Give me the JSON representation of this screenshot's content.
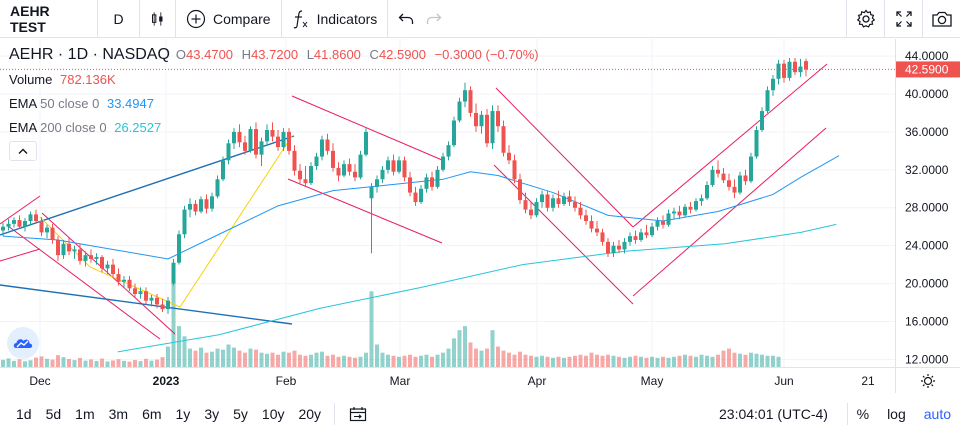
{
  "toolbar": {
    "symbol": "AEHR TEST",
    "interval": "D",
    "compare_label": "Compare",
    "indicators_label": "Indicators"
  },
  "legend": {
    "title": "AEHR · 1D · NASDAQ",
    "open_label": "O",
    "open": "43.4700",
    "high_label": "H",
    "high": "43.7200",
    "low_label": "L",
    "low": "41.8600",
    "close_label": "C",
    "close": "42.5900",
    "change": "−0.3000 (−0.70%)",
    "volume_label": "Volume",
    "volume": "782.136K",
    "ema50_label": "EMA",
    "ema50_params": "50 close 0",
    "ema50_value": "33.4947",
    "ema200_label": "EMA",
    "ema200_params": "200 close 0",
    "ema200_value": "26.2527"
  },
  "price_axis": {
    "ticks": [
      "44.0000",
      "40.0000",
      "36.0000",
      "32.0000",
      "28.0000",
      "24.0000",
      "20.0000",
      "16.0000",
      "12.0000"
    ],
    "tick_values": [
      44,
      40,
      36,
      32,
      28,
      24,
      20,
      16,
      12
    ],
    "current_price": "42.5900",
    "current_price_value": 42.59
  },
  "time_axis": {
    "labels": [
      "Dec",
      "2023",
      "Feb",
      "Mar",
      "Apr",
      "May",
      "Jun",
      "21"
    ]
  },
  "bottombar": {
    "ranges": [
      "1d",
      "5d",
      "1m",
      "3m",
      "6m",
      "1y",
      "3y",
      "5y",
      "10y",
      "20y"
    ],
    "clock": "23:04:01 (UTC-4)",
    "percent": "%",
    "log": "log",
    "auto": "auto"
  },
  "colors": {
    "up": "#26a69a",
    "down": "#ef5350",
    "ema50": "#2196f3",
    "ema200": "#26c6da",
    "channel": "#e91e63",
    "trend": "#1e6fb5",
    "fib": "#f5d300"
  },
  "chart_data": {
    "type": "candlestick",
    "symbol": "AEHR",
    "interval": "1D",
    "ylim": [
      11.2,
      45.8
    ],
    "last_close": 42.59,
    "candles": [
      [
        25.6,
        26.4,
        25.0,
        26.0
      ],
      [
        26.0,
        26.8,
        25.6,
        26.3
      ],
      [
        26.3,
        27.0,
        25.9,
        26.7
      ],
      [
        26.7,
        27.2,
        25.8,
        26.0
      ],
      [
        26.0,
        26.9,
        25.5,
        26.6
      ],
      [
        26.6,
        27.6,
        26.2,
        27.3
      ],
      [
        27.3,
        27.8,
        26.3,
        26.6
      ],
      [
        26.6,
        27.0,
        25.0,
        25.4
      ],
      [
        25.4,
        26.2,
        24.8,
        25.9
      ],
      [
        25.9,
        26.3,
        24.2,
        24.6
      ],
      [
        24.6,
        25.0,
        22.4,
        23.0
      ],
      [
        23.0,
        24.6,
        22.6,
        24.2
      ],
      [
        24.2,
        24.8,
        23.0,
        23.4
      ],
      [
        23.4,
        24.0,
        22.6,
        23.6
      ],
      [
        23.6,
        24.2,
        22.0,
        22.4
      ],
      [
        22.4,
        23.4,
        21.8,
        23.0
      ],
      [
        23.0,
        23.6,
        22.2,
        22.6
      ],
      [
        22.6,
        23.2,
        22.0,
        22.8
      ],
      [
        22.8,
        23.0,
        21.2,
        21.6
      ],
      [
        21.6,
        22.4,
        21.0,
        22.0
      ],
      [
        22.0,
        22.6,
        20.6,
        21.0
      ],
      [
        21.0,
        21.6,
        19.8,
        20.2
      ],
      [
        20.2,
        20.8,
        19.6,
        20.4
      ],
      [
        20.4,
        20.8,
        19.2,
        19.5
      ],
      [
        19.5,
        20.0,
        18.6,
        18.9
      ],
      [
        18.9,
        19.6,
        18.4,
        19.2
      ],
      [
        19.2,
        19.6,
        17.8,
        18.2
      ],
      [
        18.2,
        18.8,
        17.6,
        18.5
      ],
      [
        18.5,
        18.9,
        17.4,
        17.8
      ],
      [
        17.8,
        18.4,
        17.0,
        17.3
      ],
      [
        17.3,
        18.6,
        16.8,
        18.2
      ],
      [
        20.0,
        22.6,
        19.8,
        22.2
      ],
      [
        22.2,
        25.6,
        22.0,
        25.2
      ],
      [
        25.2,
        28.2,
        24.8,
        27.8
      ],
      [
        27.8,
        29.0,
        27.0,
        28.4
      ],
      [
        28.4,
        28.8,
        27.2,
        27.6
      ],
      [
        27.6,
        29.2,
        27.4,
        28.9
      ],
      [
        28.9,
        29.4,
        27.4,
        27.9
      ],
      [
        27.9,
        29.6,
        27.6,
        29.2
      ],
      [
        29.2,
        31.4,
        29.0,
        31.0
      ],
      [
        31.0,
        33.4,
        30.8,
        33.0
      ],
      [
        33.0,
        35.2,
        32.6,
        34.8
      ],
      [
        34.8,
        36.4,
        34.2,
        36.0
      ],
      [
        36.0,
        36.8,
        34.4,
        34.9
      ],
      [
        34.9,
        35.6,
        33.6,
        34.0
      ],
      [
        34.0,
        36.6,
        33.8,
        36.3
      ],
      [
        36.3,
        37.0,
        33.2,
        33.6
      ],
      [
        33.6,
        35.4,
        32.4,
        35.0
      ],
      [
        35.0,
        36.8,
        34.6,
        36.2
      ],
      [
        36.2,
        37.0,
        35.0,
        35.5
      ],
      [
        35.5,
        36.2,
        34.0,
        34.4
      ],
      [
        34.4,
        36.4,
        34.0,
        36.0
      ],
      [
        36.0,
        36.4,
        33.6,
        34.0
      ],
      [
        34.0,
        34.6,
        31.4,
        31.9
      ],
      [
        31.9,
        32.6,
        30.6,
        31.0
      ],
      [
        31.0,
        32.4,
        30.2,
        30.6
      ],
      [
        30.6,
        32.8,
        30.4,
        32.4
      ],
      [
        32.4,
        33.8,
        32.0,
        33.4
      ],
      [
        33.4,
        35.6,
        33.0,
        35.2
      ],
      [
        35.2,
        35.8,
        33.6,
        34.0
      ],
      [
        34.0,
        34.8,
        31.8,
        32.2
      ],
      [
        32.2,
        32.8,
        30.8,
        31.4
      ],
      [
        31.4,
        33.0,
        31.2,
        32.6
      ],
      [
        32.6,
        33.2,
        31.4,
        31.8
      ],
      [
        31.8,
        32.6,
        30.8,
        31.2
      ],
      [
        31.2,
        34.0,
        31.0,
        33.6
      ],
      [
        33.6,
        36.4,
        33.4,
        36.0
      ],
      [
        29.0,
        30.6,
        23.2,
        30.2
      ],
      [
        30.2,
        31.4,
        29.6,
        31.0
      ],
      [
        31.0,
        32.4,
        30.6,
        32.0
      ],
      [
        32.0,
        33.4,
        31.6,
        33.0
      ],
      [
        33.0,
        33.6,
        31.4,
        31.8
      ],
      [
        31.8,
        33.4,
        31.6,
        33.0
      ],
      [
        33.0,
        33.4,
        30.8,
        31.2
      ],
      [
        31.2,
        31.8,
        29.2,
        29.6
      ],
      [
        29.6,
        30.2,
        28.2,
        28.6
      ],
      [
        28.6,
        30.4,
        28.4,
        30.0
      ],
      [
        30.0,
        31.6,
        29.6,
        31.2
      ],
      [
        31.2,
        31.8,
        29.8,
        30.2
      ],
      [
        30.2,
        32.4,
        30.0,
        32.0
      ],
      [
        32.0,
        33.8,
        31.8,
        33.4
      ],
      [
        33.4,
        35.0,
        33.0,
        34.6
      ],
      [
        34.6,
        37.6,
        34.4,
        37.2
      ],
      [
        37.2,
        39.6,
        37.0,
        39.2
      ],
      [
        39.2,
        41.2,
        38.6,
        40.4
      ],
      [
        40.4,
        40.8,
        37.6,
        38.0
      ],
      [
        38.0,
        39.0,
        36.0,
        36.6
      ],
      [
        36.6,
        38.2,
        35.8,
        37.8
      ],
      [
        37.8,
        38.4,
        34.4,
        34.8
      ],
      [
        34.8,
        38.8,
        34.2,
        38.2
      ],
      [
        38.2,
        38.8,
        36.0,
        36.6
      ],
      [
        36.6,
        37.2,
        33.4,
        33.8
      ],
      [
        33.8,
        34.6,
        32.6,
        33.0
      ],
      [
        33.0,
        33.6,
        30.6,
        31.0
      ],
      [
        31.0,
        31.6,
        28.4,
        28.8
      ],
      [
        28.8,
        29.6,
        27.4,
        27.8
      ],
      [
        27.8,
        28.6,
        26.8,
        27.2
      ],
      [
        27.2,
        29.0,
        27.0,
        28.6
      ],
      [
        28.6,
        29.8,
        28.0,
        29.4
      ],
      [
        29.4,
        29.8,
        27.6,
        28.0
      ],
      [
        28.0,
        29.4,
        27.6,
        29.0
      ],
      [
        29.0,
        29.8,
        28.0,
        28.4
      ],
      [
        28.4,
        29.6,
        28.2,
        29.2
      ],
      [
        29.2,
        29.8,
        28.2,
        28.6
      ],
      [
        28.6,
        29.2,
        27.6,
        28.0
      ],
      [
        28.0,
        28.6,
        26.8,
        27.2
      ],
      [
        27.2,
        27.8,
        26.2,
        26.6
      ],
      [
        26.6,
        27.2,
        25.4,
        25.8
      ],
      [
        25.8,
        26.6,
        25.0,
        25.4
      ],
      [
        25.4,
        25.8,
        24.0,
        24.4
      ],
      [
        24.4,
        24.8,
        22.8,
        23.2
      ],
      [
        23.2,
        24.4,
        22.8,
        24.0
      ],
      [
        24.0,
        24.6,
        23.2,
        23.6
      ],
      [
        23.6,
        24.8,
        23.2,
        24.4
      ],
      [
        24.4,
        25.4,
        24.0,
        25.0
      ],
      [
        25.0,
        25.6,
        24.2,
        24.6
      ],
      [
        24.6,
        25.8,
        24.4,
        25.4
      ],
      [
        25.4,
        26.2,
        24.8,
        25.1
      ],
      [
        25.1,
        26.4,
        24.9,
        26.0
      ],
      [
        26.0,
        27.0,
        25.6,
        26.6
      ],
      [
        26.6,
        27.2,
        25.8,
        26.2
      ],
      [
        26.2,
        27.8,
        26.0,
        27.4
      ],
      [
        27.4,
        28.0,
        26.8,
        27.6
      ],
      [
        27.6,
        28.2,
        26.8,
        27.2
      ],
      [
        27.2,
        28.4,
        27.0,
        28.1
      ],
      [
        28.1,
        28.6,
        27.4,
        27.8
      ],
      [
        27.8,
        29.0,
        27.6,
        28.7
      ],
      [
        28.7,
        29.4,
        28.2,
        29.0
      ],
      [
        29.0,
        30.8,
        28.8,
        30.4
      ],
      [
        30.4,
        32.4,
        30.2,
        32.0
      ],
      [
        32.0,
        33.0,
        31.2,
        31.6
      ],
      [
        31.6,
        32.2,
        30.6,
        30.9
      ],
      [
        30.9,
        31.6,
        29.8,
        30.2
      ],
      [
        30.2,
        31.0,
        29.0,
        29.6
      ],
      [
        29.6,
        31.8,
        29.4,
        31.4
      ],
      [
        31.4,
        32.0,
        30.4,
        30.8
      ],
      [
        30.8,
        33.8,
        30.6,
        33.4
      ],
      [
        33.4,
        36.6,
        33.2,
        36.2
      ],
      [
        36.2,
        38.6,
        36.0,
        38.2
      ],
      [
        38.2,
        40.8,
        38.0,
        40.4
      ],
      [
        40.4,
        42.0,
        39.8,
        41.6
      ],
      [
        41.6,
        43.6,
        41.0,
        43.2
      ],
      [
        43.2,
        43.6,
        41.2,
        41.7
      ],
      [
        41.7,
        43.8,
        41.4,
        43.4
      ],
      [
        43.4,
        43.8,
        42.0,
        42.3
      ],
      [
        42.3,
        43.7,
        41.8,
        42.9
      ],
      [
        43.47,
        43.72,
        41.86,
        42.59
      ]
    ],
    "volume": [
      0.35,
      0.42,
      0.3,
      0.38,
      0.28,
      0.33,
      0.46,
      0.52,
      0.4,
      0.36,
      0.58,
      0.48,
      0.39,
      0.34,
      0.44,
      0.31,
      0.37,
      0.29,
      0.41,
      0.27,
      0.32,
      0.38,
      0.3,
      0.26,
      0.34,
      0.29,
      0.4,
      0.31,
      0.36,
      0.48,
      1.0,
      4.4,
      2.0,
      1.5,
      0.9,
      0.8,
      0.95,
      0.7,
      0.75,
      0.9,
      0.85,
      1.1,
      0.95,
      0.8,
      0.7,
      0.9,
      0.85,
      0.7,
      0.65,
      0.7,
      0.6,
      0.75,
      0.7,
      0.8,
      0.6,
      0.55,
      0.6,
      0.7,
      0.75,
      0.55,
      0.6,
      0.5,
      0.55,
      0.5,
      0.45,
      0.5,
      0.7,
      3.7,
      1.1,
      0.7,
      0.6,
      0.55,
      0.5,
      0.55,
      0.6,
      0.5,
      0.55,
      0.6,
      0.5,
      0.6,
      0.7,
      0.9,
      1.4,
      1.8,
      2.0,
      1.2,
      0.9,
      0.8,
      0.9,
      1.8,
      1.0,
      0.8,
      0.7,
      0.6,
      0.75,
      0.6,
      0.55,
      0.5,
      0.55,
      0.5,
      0.45,
      0.5,
      0.45,
      0.5,
      0.55,
      0.6,
      0.55,
      0.7,
      0.6,
      0.55,
      0.6,
      0.55,
      0.5,
      0.45,
      0.5,
      0.55,
      0.5,
      0.45,
      0.5,
      0.45,
      0.5,
      0.45,
      0.5,
      0.55,
      0.6,
      0.55,
      0.5,
      0.6,
      0.55,
      0.5,
      0.6,
      0.8,
      0.9,
      0.7,
      0.65,
      0.6,
      0.7,
      0.65,
      0.6,
      0.55,
      0.55,
      0.5
    ],
    "ema50": [
      [
        0,
        25.0
      ],
      [
        10,
        24.6
      ],
      [
        20,
        23.6
      ],
      [
        30,
        22.6
      ],
      [
        40,
        25.4
      ],
      [
        50,
        28.2
      ],
      [
        60,
        29.8
      ],
      [
        70,
        30.4
      ],
      [
        80,
        31.0
      ],
      [
        85,
        31.8
      ],
      [
        90,
        31.4
      ],
      [
        100,
        29.6
      ],
      [
        110,
        27.2
      ],
      [
        120,
        26.6
      ],
      [
        130,
        27.6
      ],
      [
        140,
        29.4
      ],
      [
        145,
        31.2
      ],
      [
        152,
        33.49
      ]
    ],
    "ema200": [
      [
        10,
        12.8
      ],
      [
        30,
        14.6
      ],
      [
        50,
        17.4
      ],
      [
        70,
        19.6
      ],
      [
        90,
        22.0
      ],
      [
        110,
        23.4
      ],
      [
        130,
        24.2
      ],
      [
        145,
        25.4
      ],
      [
        152,
        26.25
      ]
    ]
  }
}
